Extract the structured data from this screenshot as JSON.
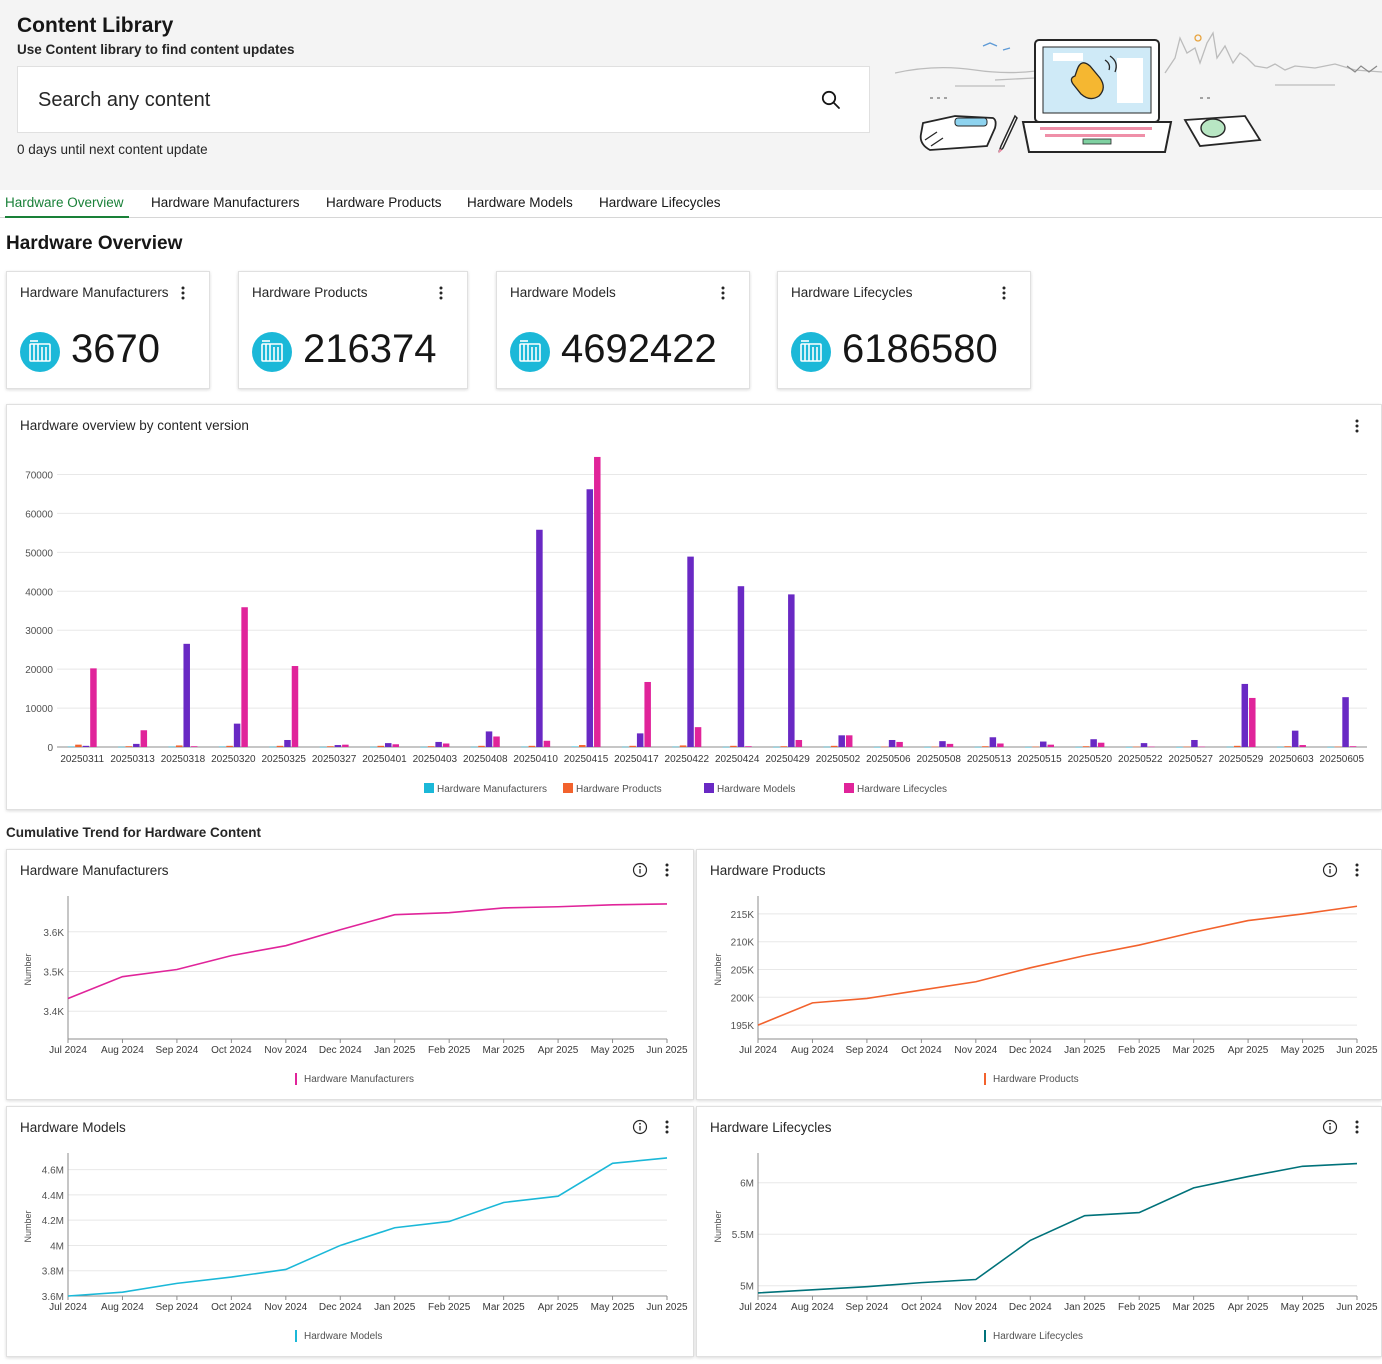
{
  "header": {
    "title": "Content Library",
    "subtitle": "Use Content library to find content updates",
    "search_placeholder": "Search any content",
    "days_text": "0 days until next content update"
  },
  "tabs": [
    {
      "label": "Hardware Overview",
      "active": true
    },
    {
      "label": "Hardware Manufacturers",
      "active": false
    },
    {
      "label": "Hardware Products",
      "active": false
    },
    {
      "label": "Hardware Models",
      "active": false
    },
    {
      "label": "Hardware Lifecycles",
      "active": false
    }
  ],
  "section_title": "Hardware Overview",
  "kpis": [
    {
      "label": "Hardware Manufacturers",
      "value": "3670"
    },
    {
      "label": "Hardware Products",
      "value": "216374"
    },
    {
      "label": "Hardware Models",
      "value": "4692422"
    },
    {
      "label": "Hardware Lifecycles",
      "value": "6186580"
    }
  ],
  "colors": {
    "manufacturers": "#1bb8d8",
    "products": "#f2622d",
    "models": "#6929c4",
    "lifecycles": "#e0249a",
    "trend_manufacturers": "#e0249a",
    "trend_products": "#f2622d",
    "trend_models": "#1bb8d8",
    "trend_lifecycles": "#00727a",
    "kpi_icon": "#1bb8d8",
    "active_tab": "#198038"
  },
  "overview_chart": {
    "title": "Hardware overview by content version"
  },
  "cumulative_title": "Cumulative Trend for Hardware Content",
  "chart_data": [
    {
      "type": "bar",
      "title": "Hardware overview by content version",
      "categories": [
        "20250311",
        "20250313",
        "20250318",
        "20250320",
        "20250325",
        "20250327",
        "20250401",
        "20250403",
        "20250408",
        "20250410",
        "20250415",
        "20250417",
        "20250422",
        "20250424",
        "20250429",
        "20250502",
        "20250506",
        "20250508",
        "20250513",
        "20250515",
        "20250520",
        "20250522",
        "20250527",
        "20250529",
        "20250603",
        "20250605"
      ],
      "yticks": [
        0,
        10000,
        20000,
        30000,
        40000,
        50000,
        60000,
        70000
      ],
      "ylim": [
        0,
        75000
      ],
      "legend_position": "bottom",
      "series": [
        {
          "name": "Hardware Manufacturers",
          "values": [
            100,
            50,
            80,
            100,
            60,
            30,
            40,
            40,
            50,
            80,
            120,
            60,
            80,
            40,
            40,
            60,
            30,
            30,
            40,
            30,
            30,
            20,
            20,
            60,
            40,
            30
          ]
        },
        {
          "name": "Hardware Products",
          "values": [
            600,
            200,
            400,
            300,
            300,
            200,
            300,
            200,
            300,
            300,
            500,
            300,
            400,
            300,
            200,
            300,
            100,
            100,
            200,
            100,
            200,
            100,
            100,
            300,
            200,
            100
          ]
        },
        {
          "name": "Hardware Models",
          "values": [
            300,
            800,
            26500,
            6000,
            1800,
            500,
            1000,
            1300,
            4000,
            55800,
            66200,
            3500,
            48900,
            41300,
            39200,
            3000,
            1800,
            1500,
            2500,
            1400,
            2000,
            1000,
            1800,
            16200,
            4200,
            12800
          ]
        },
        {
          "name": "Hardware Lifecycles",
          "values": [
            20200,
            4300,
            200,
            35900,
            20800,
            600,
            700,
            900,
            2700,
            1600,
            74500,
            16700,
            5100,
            200,
            1800,
            3000,
            1300,
            800,
            900,
            600,
            1100,
            100,
            100,
            12600,
            500,
            200
          ]
        }
      ]
    },
    {
      "type": "line",
      "title": "Hardware Manufacturers",
      "ylabel": "Number",
      "categories": [
        "Jul 2024",
        "Aug 2024",
        "Sep 2024",
        "Oct 2024",
        "Nov 2024",
        "Dec 2024",
        "Jan 2025",
        "Feb 2025",
        "Mar 2025",
        "Apr 2025",
        "May 2025",
        "Jun 2025"
      ],
      "yticks": [
        3400,
        3500,
        3600
      ],
      "ytick_labels": [
        "3.4K",
        "3.5K",
        "3.6K"
      ],
      "ylim": [
        3330,
        3680
      ],
      "series": [
        {
          "name": "Hardware Manufacturers",
          "values": [
            3432,
            3487,
            3505,
            3540,
            3565,
            3605,
            3643,
            3648,
            3660,
            3663,
            3668,
            3670
          ]
        }
      ]
    },
    {
      "type": "line",
      "title": "Hardware Products",
      "ylabel": "Number",
      "categories": [
        "Jul 2024",
        "Aug 2024",
        "Sep 2024",
        "Oct 2024",
        "Nov 2024",
        "Dec 2024",
        "Jan 2025",
        "Feb 2025",
        "Mar 2025",
        "Apr 2025",
        "May 2025",
        "Jun 2025"
      ],
      "yticks": [
        195000,
        200000,
        205000,
        210000,
        215000
      ],
      "ytick_labels": [
        "195K",
        "200K",
        "205K",
        "210K",
        "215K"
      ],
      "ylim": [
        192500,
        217500
      ],
      "series": [
        {
          "name": "Hardware Products",
          "values": [
            195000,
            199000,
            199800,
            201300,
            202800,
            205300,
            207500,
            209400,
            211700,
            213800,
            215000,
            216374
          ]
        }
      ]
    },
    {
      "type": "line",
      "title": "Hardware Models",
      "ylabel": "Number",
      "categories": [
        "Jul 2024",
        "Aug 2024",
        "Sep 2024",
        "Oct 2024",
        "Nov 2024",
        "Dec 2024",
        "Jan 2025",
        "Feb 2025",
        "Mar 2025",
        "Apr 2025",
        "May 2025",
        "Jun 2025"
      ],
      "yticks": [
        3600000,
        3800000,
        4000000,
        4200000,
        4400000,
        4600000
      ],
      "ytick_labels": [
        "3.6M",
        "3.8M",
        "4M",
        "4.2M",
        "4.4M",
        "4.6M"
      ],
      "ylim": [
        3600000,
        4700000
      ],
      "series": [
        {
          "name": "Hardware Models",
          "values": [
            3600000,
            3630000,
            3700000,
            3750000,
            3810000,
            4000000,
            4140000,
            4190000,
            4340000,
            4390000,
            4650000,
            4692422
          ]
        }
      ]
    },
    {
      "type": "line",
      "title": "Hardware Lifecycles",
      "ylabel": "Number",
      "categories": [
        "Jul 2024",
        "Aug 2024",
        "Sep 2024",
        "Oct 2024",
        "Nov 2024",
        "Dec 2024",
        "Jan 2025",
        "Feb 2025",
        "Mar 2025",
        "Apr 2025",
        "May 2025",
        "Jun 2025"
      ],
      "yticks": [
        5000000,
        5500000,
        6000000
      ],
      "ytick_labels": [
        "5M",
        "5.5M",
        "6M"
      ],
      "ylim": [
        4900000,
        6250000
      ],
      "series": [
        {
          "name": "Hardware Lifecycles",
          "values": [
            4930000,
            4960000,
            4990000,
            5030000,
            5060000,
            5440000,
            5680000,
            5710000,
            5950000,
            6060000,
            6160000,
            6186580
          ]
        }
      ]
    }
  ]
}
